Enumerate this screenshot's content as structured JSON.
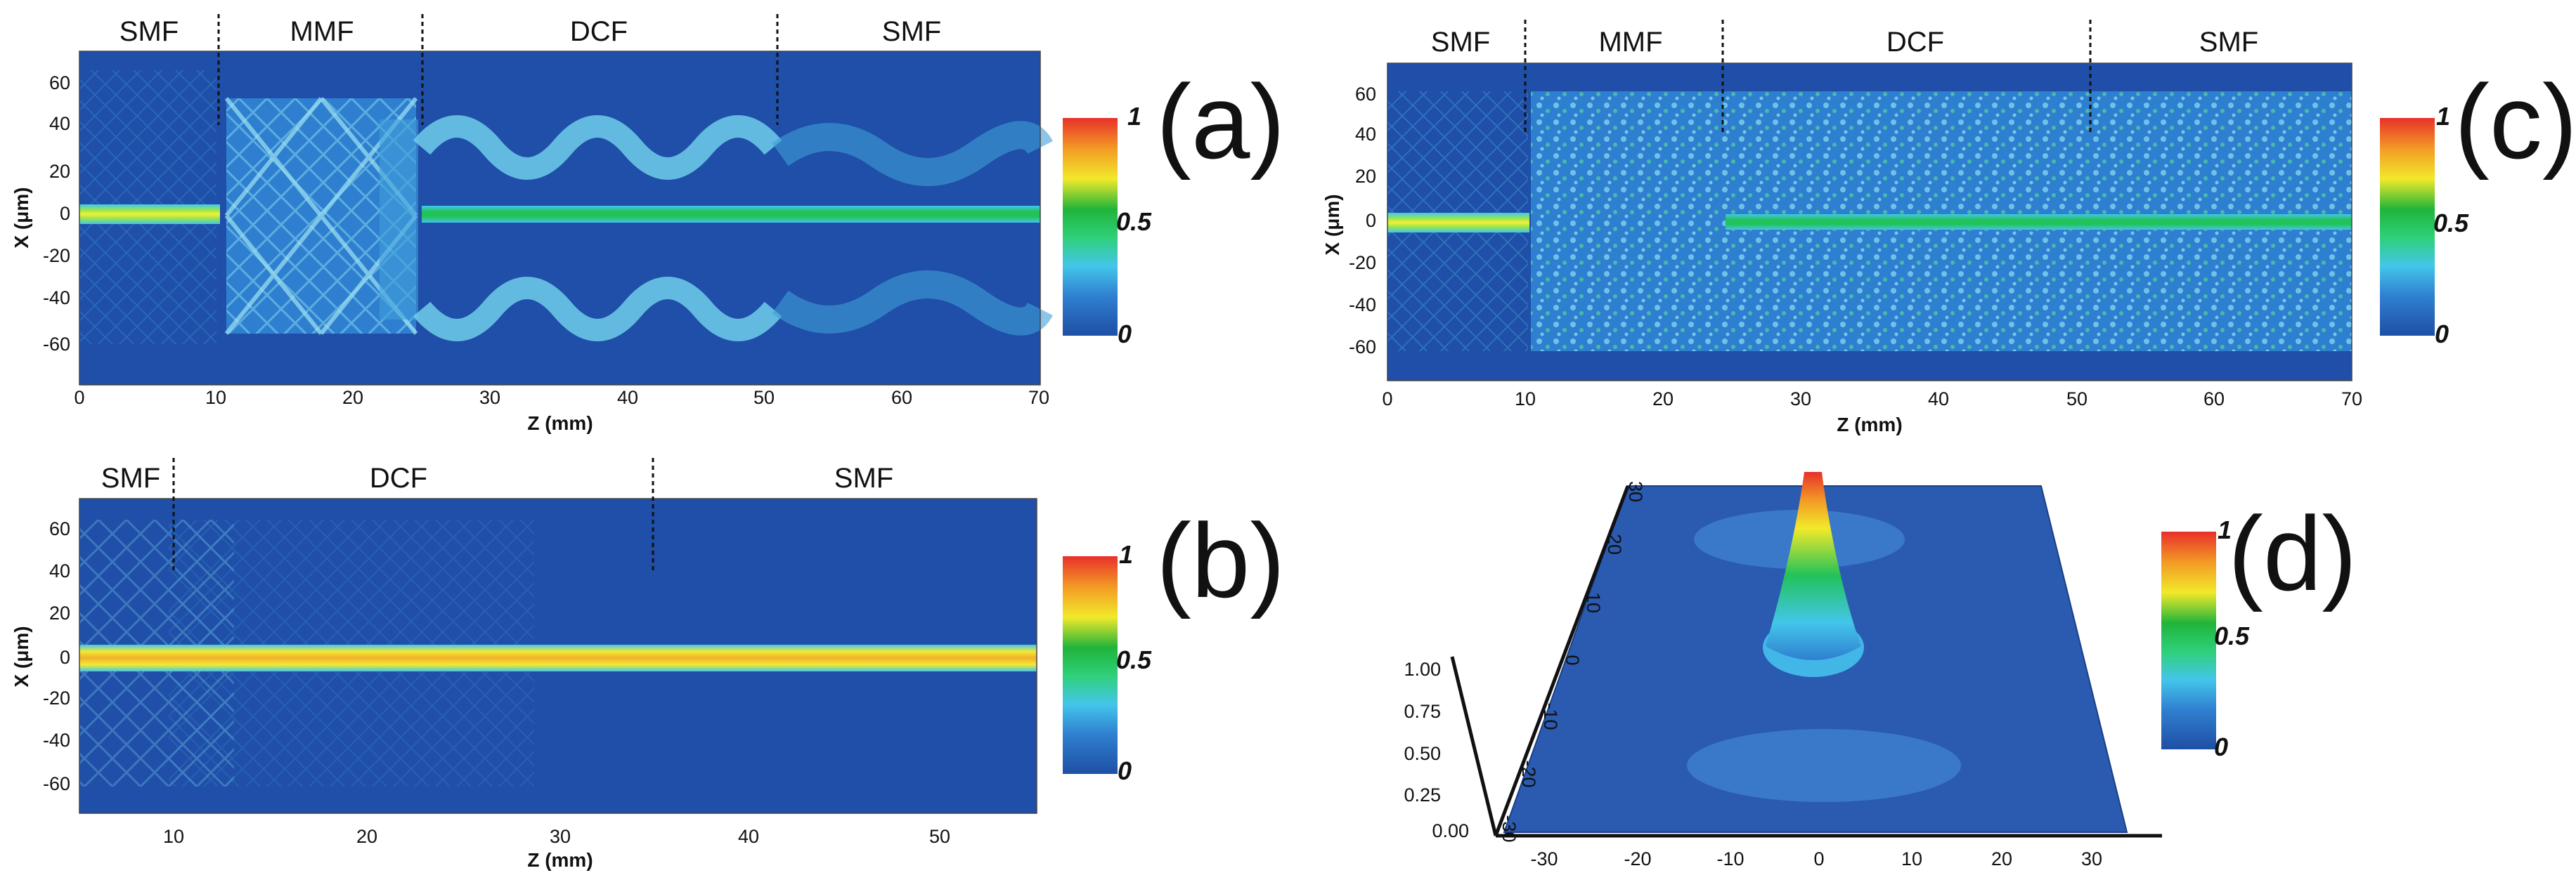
{
  "figure": {
    "colors": {
      "background": "#1f4fa8",
      "field_mid": "#3f9fd8",
      "field_light": "#7fd3ec",
      "core_green": "#22c25a",
      "core_yellow": "#e9ec3a",
      "core_orange": "#f59a2a",
      "core_red": "#e8362c"
    },
    "colorbar": {
      "stops": [
        "#1e4fa4",
        "#2f7fd0",
        "#43c6ea",
        "#2fd07a",
        "#20b43a",
        "#f2e92a",
        "#f39a25",
        "#e8302a"
      ],
      "label_top": "1",
      "label_mid": "0.5",
      "label_bottom": "0"
    }
  },
  "chart_data": [
    {
      "panel": "(a)",
      "type": "heatmap",
      "title": "",
      "xlabel": "Z (mm)",
      "ylabel": "X (μm)",
      "xlim": [
        0,
        70
      ],
      "ylim": [
        -77,
        77
      ],
      "x_ticks": [
        "0",
        "10",
        "20",
        "30",
        "40",
        "50",
        "60",
        "70"
      ],
      "y_ticks": [
        "60",
        "40",
        "20",
        "0",
        "-20",
        "-40",
        "-60"
      ],
      "sections": [
        {
          "name": "SMF",
          "start": 0,
          "end": 10
        },
        {
          "name": "MMF",
          "start": 10,
          "end": 25
        },
        {
          "name": "DCF",
          "start": 25,
          "end": 51
        },
        {
          "name": "SMF",
          "start": 51,
          "end": 70
        }
      ],
      "section_boundaries": [
        10,
        25,
        51
      ],
      "colorbar_range": [
        0,
        1
      ]
    },
    {
      "panel": "(b)",
      "type": "heatmap",
      "title": "",
      "xlabel": "Z (mm)",
      "ylabel": "X (μm)",
      "xlim": [
        5,
        55
      ],
      "ylim": [
        -77,
        77
      ],
      "x_ticks": [
        "10",
        "20",
        "30",
        "40",
        "50"
      ],
      "y_ticks": [
        "60",
        "40",
        "20",
        "0",
        "-20",
        "-40",
        "-60"
      ],
      "sections": [
        {
          "name": "SMF",
          "start": 5,
          "end": 10
        },
        {
          "name": "DCF",
          "start": 10,
          "end": 35
        },
        {
          "name": "SMF",
          "start": 35,
          "end": 55
        }
      ],
      "section_boundaries": [
        10,
        35
      ],
      "colorbar_range": [
        0,
        1
      ]
    },
    {
      "panel": "(c)",
      "type": "heatmap",
      "title": "",
      "xlabel": "Z (mm)",
      "ylabel": "X (μm)",
      "xlim": [
        0,
        70
      ],
      "ylim": [
        -77,
        77
      ],
      "x_ticks": [
        "0",
        "10",
        "20",
        "30",
        "40",
        "50",
        "60",
        "70"
      ],
      "y_ticks": [
        "60",
        "40",
        "20",
        "0",
        "-20",
        "-40",
        "-60"
      ],
      "sections": [
        {
          "name": "SMF",
          "start": 0,
          "end": 10
        },
        {
          "name": "MMF",
          "start": 10,
          "end": 24
        },
        {
          "name": "DCF",
          "start": 24,
          "end": 51
        },
        {
          "name": "SMF",
          "start": 51,
          "end": 70
        }
      ],
      "section_boundaries": [
        10,
        24,
        51
      ],
      "colorbar_range": [
        0,
        1
      ]
    },
    {
      "panel": "(d)",
      "type": "surface",
      "title": "",
      "x_ticks": [
        "-30",
        "-20",
        "-10",
        "0",
        "10",
        "20",
        "30"
      ],
      "y_ticks": [
        "30",
        "20",
        "10",
        "0",
        "-10",
        "-20",
        "-30"
      ],
      "z_ticks": [
        "1.00",
        "0.75",
        "0.50",
        "0.25",
        "0.00"
      ],
      "zlim": [
        0,
        1
      ],
      "peak": {
        "x": 0,
        "y": 0,
        "z": 1.0
      },
      "colorbar_range": [
        0,
        1
      ]
    }
  ],
  "colorbar_labels": {
    "top": "1",
    "mid": "0.5",
    "bottom": "0"
  }
}
